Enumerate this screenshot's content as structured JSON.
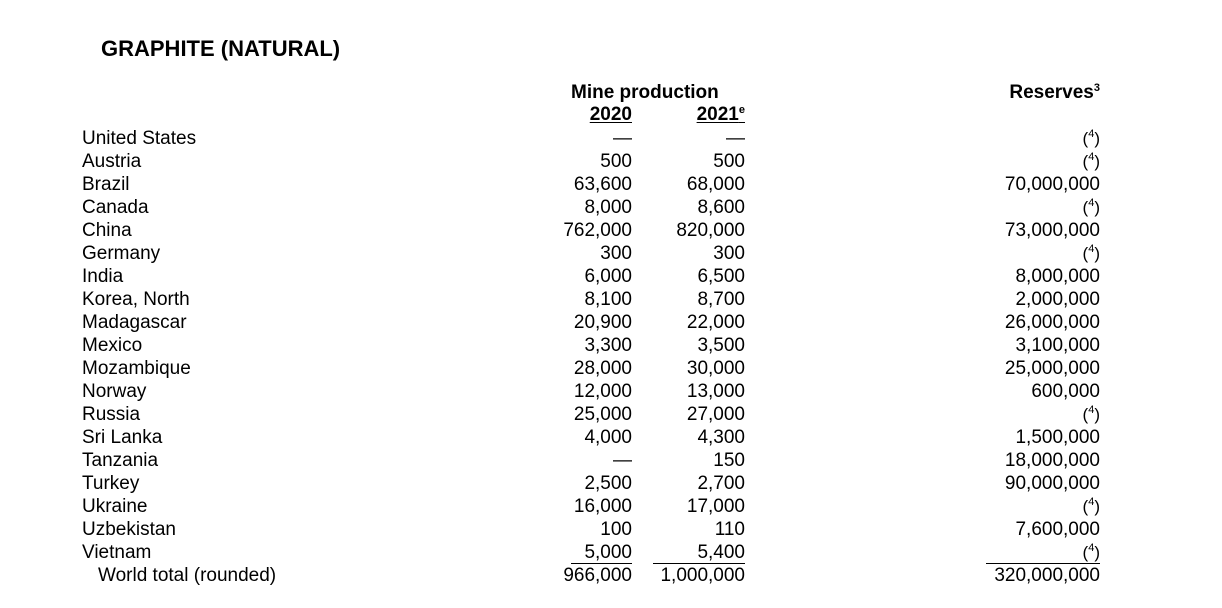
{
  "title": "GRAPHITE (NATURAL)",
  "headers": {
    "mine_production": "Mine production",
    "year_2020": "2020",
    "year_2021": "2021",
    "year_2021_sup": "e",
    "reserves": "Reserves",
    "reserves_sup": "3"
  },
  "rows": [
    {
      "country": "United States",
      "p2020": "—",
      "p2021": "—",
      "reserves": "",
      "reserves_fn": "4"
    },
    {
      "country": "Austria",
      "p2020": "500",
      "p2021": "500",
      "reserves": "",
      "reserves_fn": "4"
    },
    {
      "country": "Brazil",
      "p2020": "63,600",
      "p2021": "68,000",
      "reserves": "70,000,000",
      "reserves_fn": ""
    },
    {
      "country": "Canada",
      "p2020": "8,000",
      "p2021": "8,600",
      "reserves": "",
      "reserves_fn": "4"
    },
    {
      "country": "China",
      "p2020": "762,000",
      "p2021": "820,000",
      "reserves": "73,000,000",
      "reserves_fn": ""
    },
    {
      "country": "Germany",
      "p2020": "300",
      "p2021": "300",
      "reserves": "",
      "reserves_fn": "4"
    },
    {
      "country": "India",
      "p2020": "6,000",
      "p2021": "6,500",
      "reserves": "8,000,000",
      "reserves_fn": ""
    },
    {
      "country": "Korea, North",
      "p2020": "8,100",
      "p2021": "8,700",
      "reserves": "2,000,000",
      "reserves_fn": ""
    },
    {
      "country": "Madagascar",
      "p2020": "20,900",
      "p2021": "22,000",
      "reserves": "26,000,000",
      "reserves_fn": ""
    },
    {
      "country": "Mexico",
      "p2020": "3,300",
      "p2021": "3,500",
      "reserves": "3,100,000",
      "reserves_fn": ""
    },
    {
      "country": "Mozambique",
      "p2020": "28,000",
      "p2021": "30,000",
      "reserves": "25,000,000",
      "reserves_fn": ""
    },
    {
      "country": "Norway",
      "p2020": "12,000",
      "p2021": "13,000",
      "reserves": "600,000",
      "reserves_fn": ""
    },
    {
      "country": "Russia",
      "p2020": "25,000",
      "p2021": "27,000",
      "reserves": "",
      "reserves_fn": "4"
    },
    {
      "country": "Sri Lanka",
      "p2020": "4,000",
      "p2021": "4,300",
      "reserves": "1,500,000",
      "reserves_fn": ""
    },
    {
      "country": "Tanzania",
      "p2020": "—",
      "p2021": "150",
      "reserves": "18,000,000",
      "reserves_fn": ""
    },
    {
      "country": "Turkey",
      "p2020": "2,500",
      "p2021": "2,700",
      "reserves": "90,000,000",
      "reserves_fn": ""
    },
    {
      "country": "Ukraine",
      "p2020": "16,000",
      "p2021": "17,000",
      "reserves": "",
      "reserves_fn": "4"
    },
    {
      "country": "Uzbekistan",
      "p2020": "100",
      "p2021": "110",
      "reserves": "7,600,000",
      "reserves_fn": ""
    },
    {
      "country": "Vietnam",
      "p2020": "5,000",
      "p2021": "5,400",
      "reserves": "",
      "reserves_fn": "4"
    }
  ],
  "total": {
    "label": "World total (rounded)",
    "p2020": "966,000",
    "p2021": "1,000,000",
    "reserves": "320,000,000"
  }
}
